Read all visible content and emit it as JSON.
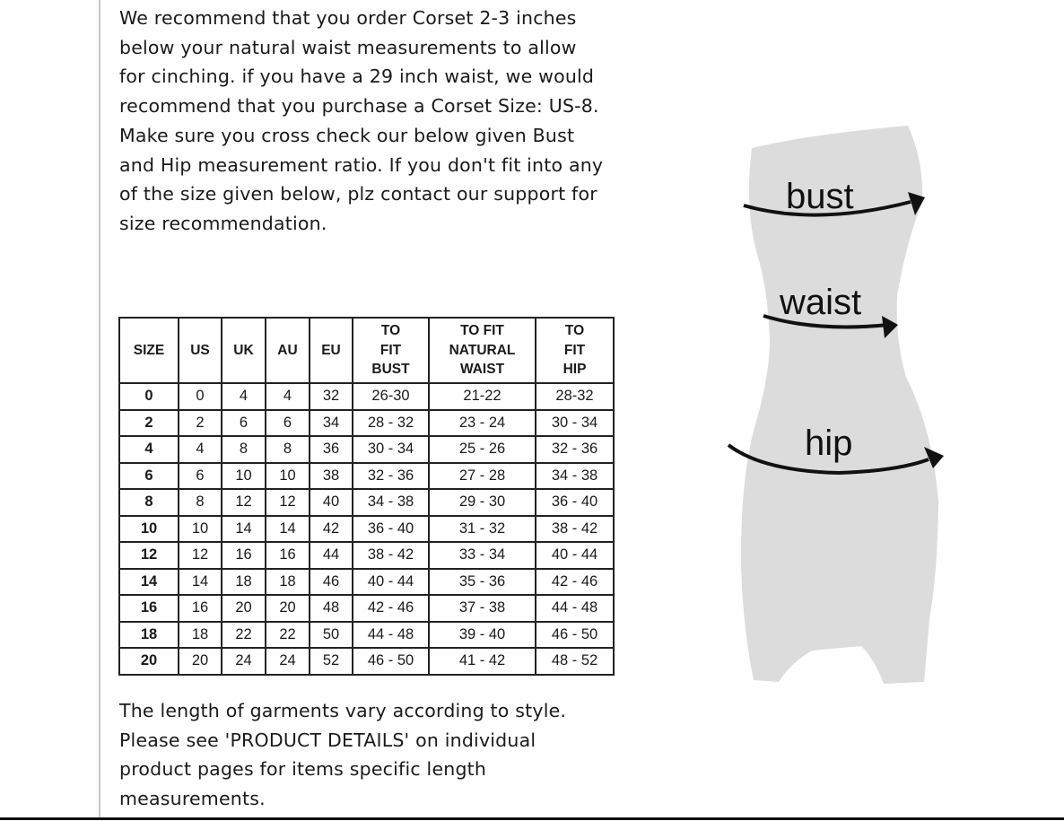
{
  "intro_text": "We recommend that you order Corset 2-3 inches below your natural waist measurements to allow for cinching. if you have a 29 inch waist, we would recommend that you purchase a Corset Size: US-8. Make sure you cross check our below given Bust and Hip measurement ratio. If you don't fit into any of the size given below, plz contact our support for size recommendation.",
  "table": {
    "headers": [
      "SIZE",
      "US",
      "UK",
      "AU",
      "EU",
      "TO FIT BUST",
      "TO FIT NATURAL WAIST",
      "TO FIT HIP"
    ],
    "rows": [
      [
        "0",
        "0",
        "4",
        "4",
        "32",
        "26-30",
        "21-22",
        "28-32"
      ],
      [
        "2",
        "2",
        "6",
        "6",
        "34",
        "28 - 32",
        "23 - 24",
        "30 - 34"
      ],
      [
        "4",
        "4",
        "8",
        "8",
        "36",
        "30 - 34",
        "25 - 26",
        "32 - 36"
      ],
      [
        "6",
        "6",
        "10",
        "10",
        "38",
        "32 - 36",
        "27 - 28",
        "34 - 38"
      ],
      [
        "8",
        "8",
        "12",
        "12",
        "40",
        "34 - 38",
        "29 - 30",
        "36 - 40"
      ],
      [
        "10",
        "10",
        "14",
        "14",
        "42",
        "36 - 40",
        "31 - 32",
        "38 - 42"
      ],
      [
        "12",
        "12",
        "16",
        "16",
        "44",
        "38 - 42",
        "33 - 34",
        "40 - 44"
      ],
      [
        "14",
        "14",
        "18",
        "18",
        "46",
        "40 - 44",
        "35 - 36",
        "42 - 46"
      ],
      [
        "16",
        "16",
        "20",
        "20",
        "48",
        "42 - 46",
        "37 - 38",
        "44 - 48"
      ],
      [
        "18",
        "18",
        "22",
        "22",
        "50",
        "44 - 48",
        "39 - 40",
        "46 - 50"
      ],
      [
        "20",
        "20",
        "24",
        "24",
        "52",
        "46 - 50",
        "41 - 42",
        "48 - 52"
      ]
    ]
  },
  "outro_text": "The length of garments vary according to style. Please see 'PRODUCT DETAILS'  on individual product pages for items specific length measurements.",
  "figure": {
    "labels": {
      "bust": "bust",
      "waist": "waist",
      "hip": "hip"
    },
    "silhouette_color": "#dcdcdc"
  }
}
